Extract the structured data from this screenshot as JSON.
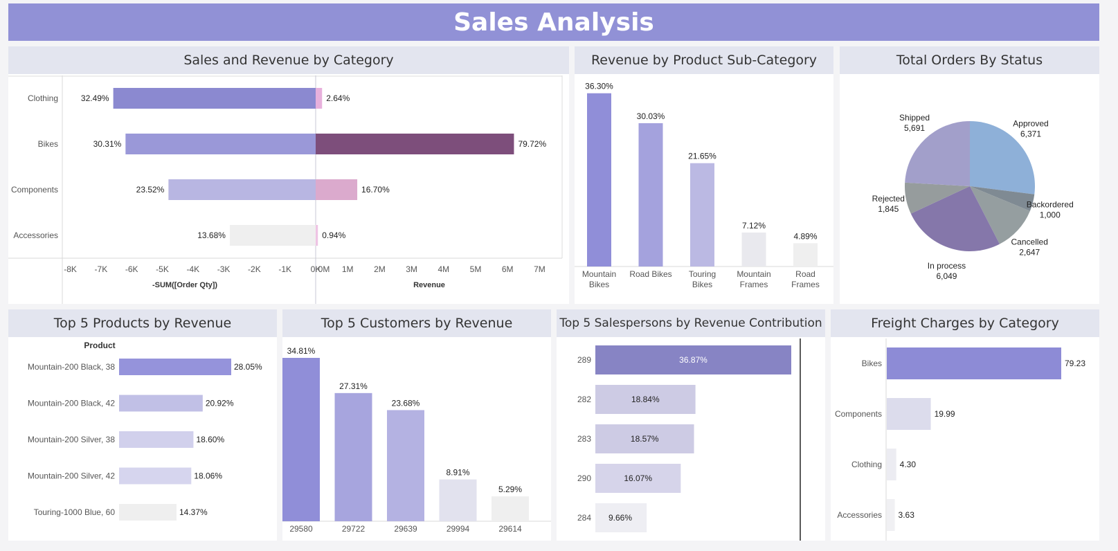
{
  "title": "Sales Analysis",
  "panels": {
    "category": "Sales and Revenue by Category",
    "subcat": "Revenue by Product Sub-Category",
    "status": "Total Orders By Status",
    "products": "Top 5 Products by Revenue",
    "customers": "Top 5 Customers by Revenue",
    "salespersons": "Top 5 Salespersons by Revenue Contribution",
    "freight": "Freight Charges by Category"
  },
  "chart_data": [
    {
      "id": "category",
      "type": "bar",
      "orientation": "horizontal",
      "categories": [
        "Clothing",
        "Bikes",
        "Components",
        "Accessories"
      ],
      "series": [
        {
          "values": [
            -6.6,
            -6.2,
            -4.8,
            -2.8
          ],
          "labels": [
            "32.49%",
            "30.31%",
            "23.52%",
            "13.68%"
          ],
          "colors": [
            "#8b89d0",
            "#9a98d8",
            "#b8b6e2",
            "#efefef"
          ]
        },
        {
          "values": [
            0.2,
            6.2,
            1.3,
            0.07
          ],
          "labels": [
            "2.64%",
            "79.72%",
            "16.70%",
            "0.94%"
          ],
          "colors": [
            "#e7b0dc",
            "#7d4e7b",
            "#dbaacd",
            "#eec4e4"
          ]
        }
      ],
      "left_ticks": [
        "-8K",
        "-7K",
        "-6K",
        "-5K",
        "-4K",
        "-3K",
        "-2K",
        "-1K",
        "0K"
      ],
      "right_ticks": [
        "0M",
        "1M",
        "2M",
        "3M",
        "4M",
        "5M",
        "6M",
        "7M"
      ],
      "left_xlim": [
        -8,
        0
      ],
      "right_xlim": [
        0,
        7.5
      ],
      "xlabel_left": "-SUM([Order Qty])",
      "xlabel_right": "Revenue"
    },
    {
      "id": "subcat",
      "type": "bar",
      "categories": [
        [
          "Mountain",
          "Bikes"
        ],
        [
          "Road Bikes"
        ],
        [
          "Touring",
          "Bikes"
        ],
        [
          "Mountain",
          "Frames"
        ],
        [
          "Road",
          "Frames"
        ]
      ],
      "values": [
        36.3,
        30.03,
        21.65,
        7.12,
        4.89
      ],
      "labels": [
        "36.30%",
        "30.03%",
        "21.65%",
        "7.12%",
        "4.89%"
      ],
      "colors": [
        "#908ed8",
        "#a4a2dd",
        "#bbb9e3",
        "#e9e9ee",
        "#efefef"
      ],
      "ylim": [
        0,
        38
      ]
    },
    {
      "id": "status",
      "type": "pie",
      "slices": [
        {
          "name": "Approved",
          "value": 6371,
          "label": "6,371",
          "color": "#8eb0d8"
        },
        {
          "name": "Backordered",
          "value": 1000,
          "label": "1,000",
          "color": "#7f8a93"
        },
        {
          "name": "Cancelled",
          "value": 2647,
          "label": "2,647",
          "color": "#959ea0"
        },
        {
          "name": "In process",
          "value": 6049,
          "label": "6,049",
          "color": "#8577aa"
        },
        {
          "name": "Rejected",
          "value": 1845,
          "label": "1,845",
          "color": "#969c9d"
        },
        {
          "name": "Shipped",
          "value": 5691,
          "label": "5,691",
          "color": "#a29fca"
        }
      ]
    },
    {
      "id": "products",
      "type": "bar",
      "orientation": "horizontal",
      "header": "Product",
      "categories": [
        "Mountain-200 Black, 38",
        "Mountain-200 Black, 42",
        "Mountain-200 Silver, 38",
        "Mountain-200 Silver, 42",
        "Touring-1000 Blue, 60"
      ],
      "values": [
        28.05,
        20.92,
        18.6,
        18.06,
        14.37
      ],
      "labels": [
        "28.05%",
        "20.92%",
        "18.60%",
        "18.06%",
        "14.37%"
      ],
      "colors": [
        "#9593db",
        "#c1c0e6",
        "#d1d0ec",
        "#d6d5ee",
        "#efefef"
      ],
      "xlim": [
        0,
        28.05
      ]
    },
    {
      "id": "customers",
      "type": "bar",
      "categories": [
        "29580",
        "29722",
        "29639",
        "29994",
        "29614"
      ],
      "values": [
        34.81,
        27.31,
        23.68,
        8.91,
        5.29
      ],
      "labels": [
        "34.81%",
        "27.31%",
        "23.68%",
        "8.91%",
        "5.29%"
      ],
      "colors": [
        "#908ed8",
        "#a7a5de",
        "#b4b2e2",
        "#e2e2ee",
        "#efefef"
      ],
      "ylim": [
        0,
        34.81
      ]
    },
    {
      "id": "salespersons",
      "type": "bar",
      "orientation": "horizontal",
      "categories": [
        "289",
        "282",
        "283",
        "290",
        "284"
      ],
      "values": [
        36.87,
        18.84,
        18.57,
        16.07,
        9.66
      ],
      "labels": [
        "36.87%",
        "18.84%",
        "18.57%",
        "16.07%",
        "9.66%"
      ],
      "colors": [
        "#8784c4",
        "#cdcbe4",
        "#cdcbe4",
        "#d6d4ea",
        "#eeeef3"
      ],
      "xlim": [
        0,
        36.87
      ]
    },
    {
      "id": "freight",
      "type": "bar",
      "orientation": "horizontal",
      "categories": [
        "Bikes",
        "Components",
        "Clothing",
        "Accessories"
      ],
      "values": [
        79.23,
        19.99,
        4.3,
        3.63
      ],
      "labels": [
        "79.23",
        "19.99",
        "4.30",
        "3.63"
      ],
      "colors": [
        "#8d8bd6",
        "#dcdcec",
        "#ececf2",
        "#f0f0f3"
      ],
      "xlim": [
        0,
        79.23
      ]
    }
  ]
}
